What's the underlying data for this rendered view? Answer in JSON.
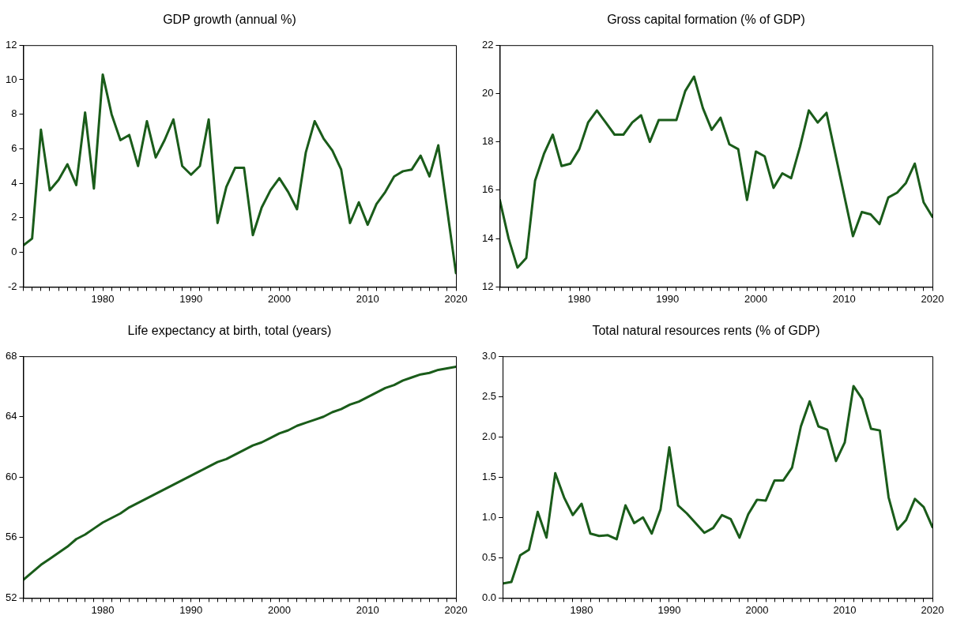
{
  "chart_data": [
    {
      "type": "line",
      "title": "GDP growth (annual %)",
      "x": [
        1971,
        1972,
        1973,
        1974,
        1975,
        1976,
        1977,
        1978,
        1979,
        1980,
        1981,
        1982,
        1983,
        1984,
        1985,
        1986,
        1987,
        1988,
        1989,
        1990,
        1991,
        1992,
        1993,
        1994,
        1995,
        1996,
        1997,
        1998,
        1999,
        2000,
        2001,
        2002,
        2003,
        2004,
        2005,
        2006,
        2007,
        2008,
        2009,
        2010,
        2011,
        2012,
        2013,
        2014,
        2015,
        2016,
        2017,
        2018,
        2019,
        2020
      ],
      "series": [
        {
          "color": "#1a5c1a",
          "values": [
            0.4,
            0.8,
            7.1,
            3.6,
            4.2,
            5.1,
            3.9,
            8.1,
            3.7,
            10.3,
            8.0,
            6.5,
            6.8,
            5.0,
            7.6,
            5.5,
            6.5,
            7.7,
            5.0,
            4.5,
            5.0,
            7.7,
            1.7,
            3.8,
            4.9,
            4.9,
            1.0,
            2.6,
            3.6,
            4.3,
            3.5,
            2.5,
            5.8,
            7.6,
            6.6,
            5.9,
            4.8,
            1.7,
            2.9,
            1.6,
            2.8,
            3.5,
            4.4,
            4.7,
            4.8,
            5.6,
            4.4,
            6.2,
            2.5,
            -1.2
          ]
        }
      ],
      "xlim": [
        1971,
        2020
      ],
      "xticks": [
        {
          "value": 1971,
          "label": null
        },
        {
          "value": 1972,
          "label": null
        },
        {
          "value": 1973,
          "label": null
        },
        {
          "value": 1974,
          "label": null
        },
        {
          "value": 1975,
          "label": null
        },
        {
          "value": 1976,
          "label": null
        },
        {
          "value": 1977,
          "label": null
        },
        {
          "value": 1978,
          "label": null
        },
        {
          "value": 1979,
          "label": null
        },
        1980,
        {
          "value": 1981,
          "label": null
        },
        {
          "value": 1982,
          "label": null
        },
        {
          "value": 1983,
          "label": null
        },
        {
          "value": 1984,
          "label": null
        },
        {
          "value": 1985,
          "label": null
        },
        {
          "value": 1986,
          "label": null
        },
        {
          "value": 1987,
          "label": null
        },
        {
          "value": 1988,
          "label": null
        },
        {
          "value": 1989,
          "label": null
        },
        1990,
        {
          "value": 1991,
          "label": null
        },
        {
          "value": 1992,
          "label": null
        },
        {
          "value": 1993,
          "label": null
        },
        {
          "value": 1994,
          "label": null
        },
        {
          "value": 1995,
          "label": null
        },
        {
          "value": 1996,
          "label": null
        },
        {
          "value": 1997,
          "label": null
        },
        {
          "value": 1998,
          "label": null
        },
        {
          "value": 1999,
          "label": null
        },
        2000,
        {
          "value": 2001,
          "label": null
        },
        {
          "value": 2002,
          "label": null
        },
        {
          "value": 2003,
          "label": null
        },
        {
          "value": 2004,
          "label": null
        },
        {
          "value": 2005,
          "label": null
        },
        {
          "value": 2006,
          "label": null
        },
        {
          "value": 2007,
          "label": null
        },
        {
          "value": 2008,
          "label": null
        },
        {
          "value": 2009,
          "label": null
        },
        2010,
        {
          "value": 2011,
          "label": null
        },
        {
          "value": 2012,
          "label": null
        },
        {
          "value": 2013,
          "label": null
        },
        {
          "value": 2014,
          "label": null
        },
        {
          "value": 2015,
          "label": null
        },
        {
          "value": 2016,
          "label": null
        },
        {
          "value": 2017,
          "label": null
        },
        {
          "value": 2018,
          "label": null
        },
        {
          "value": 2019,
          "label": null
        },
        2020
      ],
      "ylim": [
        -2,
        12
      ],
      "yticks": [
        -2,
        0,
        2,
        4,
        6,
        8,
        10,
        12
      ],
      "grid": false,
      "legend": false,
      "marker": "none",
      "line_style": "solid"
    },
    {
      "type": "line",
      "title": "Gross capital formation (% of GDP)",
      "x": [
        1971,
        1972,
        1973,
        1974,
        1975,
        1976,
        1977,
        1978,
        1979,
        1980,
        1981,
        1982,
        1983,
        1984,
        1985,
        1986,
        1987,
        1988,
        1989,
        1990,
        1991,
        1992,
        1993,
        1994,
        1995,
        1996,
        1997,
        1998,
        1999,
        2000,
        2001,
        2002,
        2003,
        2004,
        2005,
        2006,
        2007,
        2008,
        2009,
        2010,
        2011,
        2012,
        2013,
        2014,
        2015,
        2016,
        2017,
        2018,
        2019,
        2020
      ],
      "series": [
        {
          "color": "#1a5c1a",
          "values": [
            15.6,
            14.0,
            12.8,
            13.2,
            16.4,
            17.5,
            18.3,
            17.0,
            17.1,
            17.7,
            18.8,
            19.3,
            18.8,
            18.3,
            18.3,
            18.8,
            19.1,
            18.0,
            18.9,
            18.9,
            18.9,
            20.1,
            20.7,
            19.4,
            18.5,
            19.0,
            17.9,
            17.7,
            15.6,
            17.6,
            17.4,
            16.1,
            16.7,
            16.5,
            17.8,
            19.3,
            18.8,
            19.2,
            17.5,
            15.8,
            14.1,
            15.1,
            15.0,
            14.6,
            15.7,
            15.9,
            16.3,
            17.1,
            15.5,
            14.9
          ]
        }
      ],
      "xlim": [
        1971,
        2020
      ],
      "xticks": [
        {
          "value": 1971,
          "label": null
        },
        {
          "value": 1972,
          "label": null
        },
        {
          "value": 1973,
          "label": null
        },
        {
          "value": 1974,
          "label": null
        },
        {
          "value": 1975,
          "label": null
        },
        {
          "value": 1976,
          "label": null
        },
        {
          "value": 1977,
          "label": null
        },
        {
          "value": 1978,
          "label": null
        },
        {
          "value": 1979,
          "label": null
        },
        1980,
        {
          "value": 1981,
          "label": null
        },
        {
          "value": 1982,
          "label": null
        },
        {
          "value": 1983,
          "label": null
        },
        {
          "value": 1984,
          "label": null
        },
        {
          "value": 1985,
          "label": null
        },
        {
          "value": 1986,
          "label": null
        },
        {
          "value": 1987,
          "label": null
        },
        {
          "value": 1988,
          "label": null
        },
        {
          "value": 1989,
          "label": null
        },
        1990,
        {
          "value": 1991,
          "label": null
        },
        {
          "value": 1992,
          "label": null
        },
        {
          "value": 1993,
          "label": null
        },
        {
          "value": 1994,
          "label": null
        },
        {
          "value": 1995,
          "label": null
        },
        {
          "value": 1996,
          "label": null
        },
        {
          "value": 1997,
          "label": null
        },
        {
          "value": 1998,
          "label": null
        },
        {
          "value": 1999,
          "label": null
        },
        2000,
        {
          "value": 2001,
          "label": null
        },
        {
          "value": 2002,
          "label": null
        },
        {
          "value": 2003,
          "label": null
        },
        {
          "value": 2004,
          "label": null
        },
        {
          "value": 2005,
          "label": null
        },
        {
          "value": 2006,
          "label": null
        },
        {
          "value": 2007,
          "label": null
        },
        {
          "value": 2008,
          "label": null
        },
        {
          "value": 2009,
          "label": null
        },
        2010,
        {
          "value": 2011,
          "label": null
        },
        {
          "value": 2012,
          "label": null
        },
        {
          "value": 2013,
          "label": null
        },
        {
          "value": 2014,
          "label": null
        },
        {
          "value": 2015,
          "label": null
        },
        {
          "value": 2016,
          "label": null
        },
        {
          "value": 2017,
          "label": null
        },
        {
          "value": 2018,
          "label": null
        },
        {
          "value": 2019,
          "label": null
        },
        2020
      ],
      "ylim": [
        12,
        22
      ],
      "yticks": [
        12,
        14,
        16,
        18,
        20,
        22
      ],
      "grid": false,
      "legend": false,
      "marker": "none",
      "line_style": "solid"
    },
    {
      "type": "line",
      "title": "Life expectancy at birth, total (years)",
      "x": [
        1971,
        1972,
        1973,
        1974,
        1975,
        1976,
        1977,
        1978,
        1979,
        1980,
        1981,
        1982,
        1983,
        1984,
        1985,
        1986,
        1987,
        1988,
        1989,
        1990,
        1991,
        1992,
        1993,
        1994,
        1995,
        1996,
        1997,
        1998,
        1999,
        2000,
        2001,
        2002,
        2003,
        2004,
        2005,
        2006,
        2007,
        2008,
        2009,
        2010,
        2011,
        2012,
        2013,
        2014,
        2015,
        2016,
        2017,
        2018,
        2019,
        2020
      ],
      "series": [
        {
          "color": "#1a5c1a",
          "values": [
            53.2,
            53.7,
            54.2,
            54.6,
            55.0,
            55.4,
            55.9,
            56.2,
            56.6,
            57.0,
            57.3,
            57.6,
            58.0,
            58.3,
            58.6,
            58.9,
            59.2,
            59.5,
            59.8,
            60.1,
            60.4,
            60.7,
            61.0,
            61.2,
            61.5,
            61.8,
            62.1,
            62.3,
            62.6,
            62.9,
            63.1,
            63.4,
            63.6,
            63.8,
            64.0,
            64.3,
            64.5,
            64.8,
            65.0,
            65.3,
            65.6,
            65.9,
            66.1,
            66.4,
            66.6,
            66.8,
            66.9,
            67.1,
            67.2,
            67.3
          ]
        }
      ],
      "xlim": [
        1971,
        2020
      ],
      "xticks": [
        {
          "value": 1971,
          "label": null
        },
        {
          "value": 1972,
          "label": null
        },
        {
          "value": 1973,
          "label": null
        },
        {
          "value": 1974,
          "label": null
        },
        {
          "value": 1975,
          "label": null
        },
        {
          "value": 1976,
          "label": null
        },
        {
          "value": 1977,
          "label": null
        },
        {
          "value": 1978,
          "label": null
        },
        {
          "value": 1979,
          "label": null
        },
        1980,
        {
          "value": 1981,
          "label": null
        },
        {
          "value": 1982,
          "label": null
        },
        {
          "value": 1983,
          "label": null
        },
        {
          "value": 1984,
          "label": null
        },
        {
          "value": 1985,
          "label": null
        },
        {
          "value": 1986,
          "label": null
        },
        {
          "value": 1987,
          "label": null
        },
        {
          "value": 1988,
          "label": null
        },
        {
          "value": 1989,
          "label": null
        },
        1990,
        {
          "value": 1991,
          "label": null
        },
        {
          "value": 1992,
          "label": null
        },
        {
          "value": 1993,
          "label": null
        },
        {
          "value": 1994,
          "label": null
        },
        {
          "value": 1995,
          "label": null
        },
        {
          "value": 1996,
          "label": null
        },
        {
          "value": 1997,
          "label": null
        },
        {
          "value": 1998,
          "label": null
        },
        {
          "value": 1999,
          "label": null
        },
        2000,
        {
          "value": 2001,
          "label": null
        },
        {
          "value": 2002,
          "label": null
        },
        {
          "value": 2003,
          "label": null
        },
        {
          "value": 2004,
          "label": null
        },
        {
          "value": 2005,
          "label": null
        },
        {
          "value": 2006,
          "label": null
        },
        {
          "value": 2007,
          "label": null
        },
        {
          "value": 2008,
          "label": null
        },
        {
          "value": 2009,
          "label": null
        },
        2010,
        {
          "value": 2011,
          "label": null
        },
        {
          "value": 2012,
          "label": null
        },
        {
          "value": 2013,
          "label": null
        },
        {
          "value": 2014,
          "label": null
        },
        {
          "value": 2015,
          "label": null
        },
        {
          "value": 2016,
          "label": null
        },
        {
          "value": 2017,
          "label": null
        },
        {
          "value": 2018,
          "label": null
        },
        {
          "value": 2019,
          "label": null
        },
        2020
      ],
      "ylim": [
        52,
        68
      ],
      "yticks": [
        52,
        56,
        60,
        64,
        68
      ],
      "grid": false,
      "legend": false,
      "marker": "none",
      "line_style": "solid"
    },
    {
      "type": "line",
      "title": "Total natural resources rents (% of GDP)",
      "x": [
        1971,
        1972,
        1973,
        1974,
        1975,
        1976,
        1977,
        1978,
        1979,
        1980,
        1981,
        1982,
        1983,
        1984,
        1985,
        1986,
        1987,
        1988,
        1989,
        1990,
        1991,
        1992,
        1993,
        1994,
        1995,
        1996,
        1997,
        1998,
        1999,
        2000,
        2001,
        2002,
        2003,
        2004,
        2005,
        2006,
        2007,
        2008,
        2009,
        2010,
        2011,
        2012,
        2013,
        2014,
        2015,
        2016,
        2017,
        2018,
        2019,
        2020
      ],
      "series": [
        {
          "color": "#1a5c1a",
          "values": [
            0.18,
            0.2,
            0.53,
            0.6,
            1.07,
            0.75,
            1.55,
            1.25,
            1.03,
            1.17,
            0.8,
            0.77,
            0.78,
            0.73,
            1.15,
            0.93,
            1.0,
            0.8,
            1.1,
            1.87,
            1.15,
            1.05,
            0.93,
            0.81,
            0.87,
            1.03,
            0.98,
            0.75,
            1.04,
            1.22,
            1.21,
            1.46,
            1.46,
            1.62,
            2.13,
            2.44,
            2.13,
            2.09,
            1.7,
            1.93,
            2.63,
            2.47,
            2.1,
            2.08,
            1.25,
            0.85,
            0.97,
            1.23,
            1.13,
            0.88
          ]
        }
      ],
      "xlim": [
        1971,
        2020
      ],
      "xticks": [
        {
          "value": 1971,
          "label": null
        },
        {
          "value": 1972,
          "label": null
        },
        {
          "value": 1973,
          "label": null
        },
        {
          "value": 1974,
          "label": null
        },
        {
          "value": 1975,
          "label": null
        },
        {
          "value": 1976,
          "label": null
        },
        {
          "value": 1977,
          "label": null
        },
        {
          "value": 1978,
          "label": null
        },
        {
          "value": 1979,
          "label": null
        },
        1980,
        {
          "value": 1981,
          "label": null
        },
        {
          "value": 1982,
          "label": null
        },
        {
          "value": 1983,
          "label": null
        },
        {
          "value": 1984,
          "label": null
        },
        {
          "value": 1985,
          "label": null
        },
        {
          "value": 1986,
          "label": null
        },
        {
          "value": 1987,
          "label": null
        },
        {
          "value": 1988,
          "label": null
        },
        {
          "value": 1989,
          "label": null
        },
        1990,
        {
          "value": 1991,
          "label": null
        },
        {
          "value": 1992,
          "label": null
        },
        {
          "value": 1993,
          "label": null
        },
        {
          "value": 1994,
          "label": null
        },
        {
          "value": 1995,
          "label": null
        },
        {
          "value": 1996,
          "label": null
        },
        {
          "value": 1997,
          "label": null
        },
        {
          "value": 1998,
          "label": null
        },
        {
          "value": 1999,
          "label": null
        },
        2000,
        {
          "value": 2001,
          "label": null
        },
        {
          "value": 2002,
          "label": null
        },
        {
          "value": 2003,
          "label": null
        },
        {
          "value": 2004,
          "label": null
        },
        {
          "value": 2005,
          "label": null
        },
        {
          "value": 2006,
          "label": null
        },
        {
          "value": 2007,
          "label": null
        },
        {
          "value": 2008,
          "label": null
        },
        {
          "value": 2009,
          "label": null
        },
        2010,
        {
          "value": 2011,
          "label": null
        },
        {
          "value": 2012,
          "label": null
        },
        {
          "value": 2013,
          "label": null
        },
        {
          "value": 2014,
          "label": null
        },
        {
          "value": 2015,
          "label": null
        },
        {
          "value": 2016,
          "label": null
        },
        {
          "value": 2017,
          "label": null
        },
        {
          "value": 2018,
          "label": null
        },
        {
          "value": 2019,
          "label": null
        },
        2020
      ],
      "ylim": [
        0,
        3
      ],
      "yticks": [
        {
          "value": 0,
          "label": "0.0"
        },
        0.5,
        {
          "value": 1,
          "label": "1.0"
        },
        1.5,
        {
          "value": 2,
          "label": "2.0"
        },
        2.5,
        {
          "value": 3,
          "label": "3.0"
        }
      ],
      "grid": false,
      "legend": false,
      "marker": "none",
      "line_style": "solid"
    }
  ]
}
